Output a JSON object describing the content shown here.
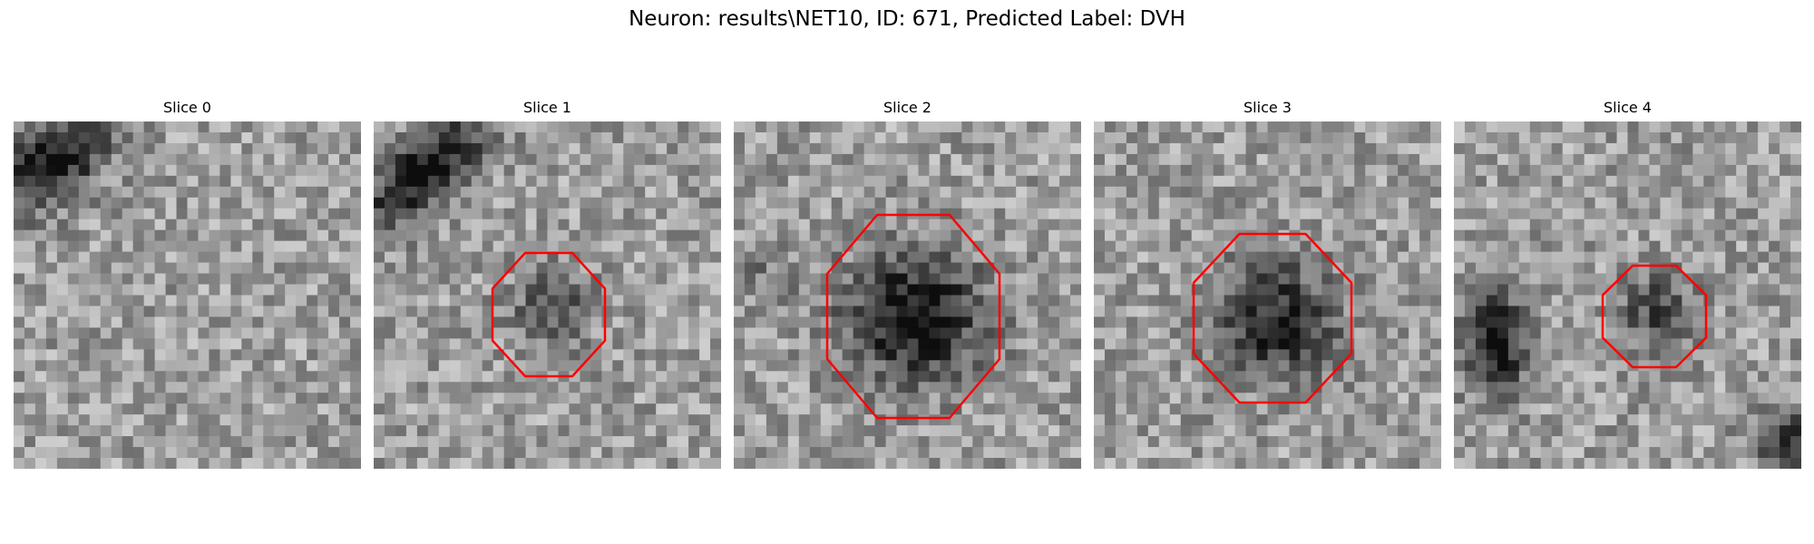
{
  "figure": {
    "title": "Neuron: results\\NET10, ID: 671, Predicted Label: DVH"
  },
  "panels": [
    {
      "title": "Slice 0",
      "has_contour": false
    },
    {
      "title": "Slice 1",
      "has_contour": true
    },
    {
      "title": "Slice 2",
      "has_contour": true
    },
    {
      "title": "Slice 3",
      "has_contour": true
    },
    {
      "title": "Slice 4",
      "has_contour": true
    }
  ],
  "colors": {
    "contour": "#ff0000",
    "background": "#ffffff"
  }
}
